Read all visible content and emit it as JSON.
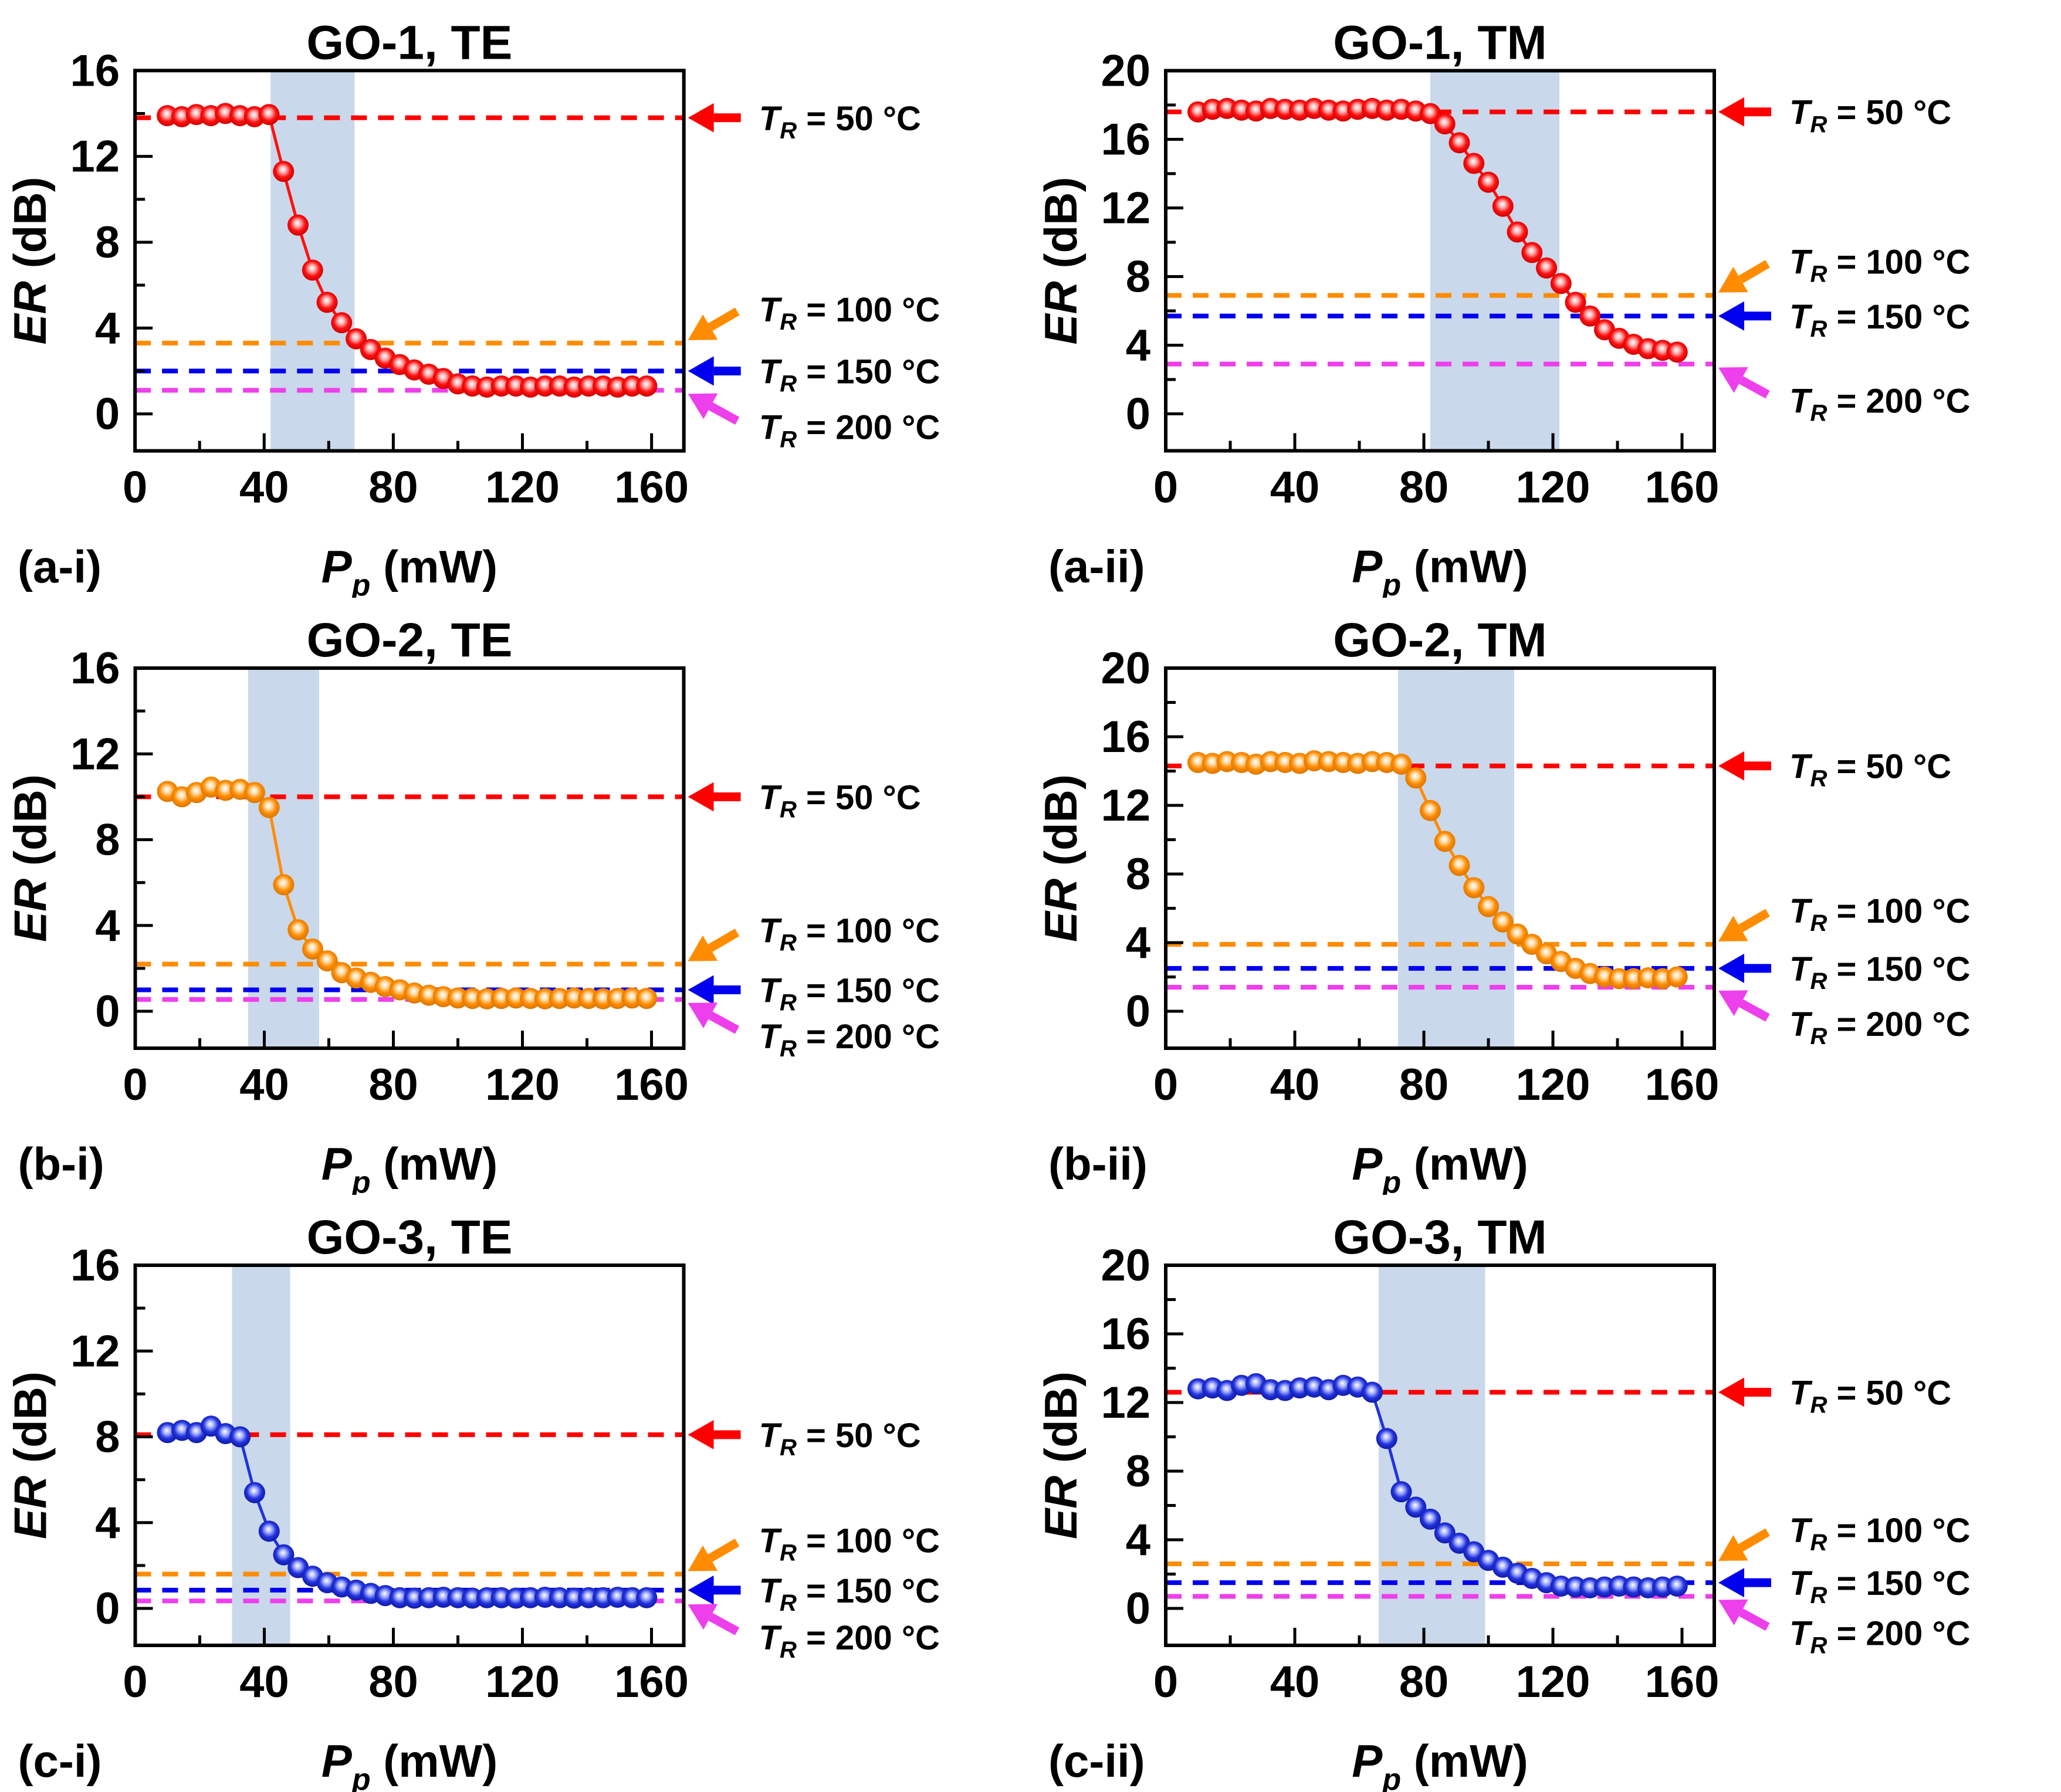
{
  "figure": {
    "x_axis": {
      "label": {
        "main": "P",
        "sub": "p",
        "rest": " (mW)"
      },
      "ticks_major": [
        0,
        40,
        80,
        120,
        160
      ],
      "ticks_minor": [
        20,
        60,
        100,
        140
      ],
      "max_mw": 170
    },
    "y_axis": {
      "label": {
        "main": "ER",
        "rest": " (dB)"
      }
    },
    "colors": {
      "background": "#FFFFFF",
      "axis": "#000000",
      "band": "#C9D8EA",
      "red": "#FF0000",
      "orange": "#FF8C00",
      "blue": "#0000EE",
      "magenta": "#EE3FEC",
      "marker_gradients": {
        "red": [
          "#FFFFFF",
          "#FFB0B0",
          "#FF1010",
          "#C80000"
        ],
        "orange": [
          "#FFFFFF",
          "#FFDCA8",
          "#FF8C00",
          "#D47300"
        ],
        "blue": [
          "#FFFFFF",
          "#A8B2FF",
          "#2233DC",
          "#0D18A0"
        ]
      }
    }
  },
  "chart_data": [
    {
      "id": "a-i",
      "tag": "(a-i)",
      "title": "GO-1, TE",
      "type": "scatter-line",
      "series": "red",
      "xlabel": "Pp (mW)",
      "ylabel": "ER (dB)",
      "xlim": [
        0,
        170
      ],
      "ymax": 16,
      "y_ticks_major": [
        0,
        4,
        8,
        12,
        16
      ],
      "y_ticks_minor": [
        2,
        6,
        10,
        14
      ],
      "band": [
        42,
        68
      ],
      "x": [
        10,
        14.5,
        19,
        23.5,
        28,
        32.5,
        37,
        41.5,
        46,
        50.5,
        55,
        59.5,
        64,
        68.5,
        73,
        77.5,
        82,
        86.5,
        91,
        95.5,
        100,
        104.5,
        109,
        113.5,
        118,
        122.5,
        127,
        131.5,
        136,
        140.5,
        145,
        149.5,
        154,
        158.5
      ],
      "y": [
        13.9,
        13.85,
        13.95,
        13.9,
        14.0,
        13.9,
        13.85,
        13.95,
        11.3,
        8.8,
        6.7,
        5.2,
        4.25,
        3.5,
        3.0,
        2.6,
        2.3,
        2.05,
        1.85,
        1.65,
        1.4,
        1.3,
        1.25,
        1.3,
        1.3,
        1.25,
        1.3,
        1.3,
        1.25,
        1.3,
        1.3,
        1.25,
        1.3,
        1.3
      ],
      "ref_lines": [
        {
          "id": "tr-50",
          "value": 13.8,
          "color": "red",
          "arrow": "left",
          "T": "T",
          "sub": "R",
          "rest": " = 50 °C"
        },
        {
          "id": "tr-100",
          "value": 3.3,
          "color": "orange",
          "arrow": "diag-down",
          "T": "T",
          "sub": "R",
          "rest": " = 100 °C"
        },
        {
          "id": "tr-150",
          "value": 2.0,
          "color": "blue",
          "arrow": "left",
          "T": "T",
          "sub": "R",
          "rest": " = 150 °C"
        },
        {
          "id": "tr-200",
          "value": 1.1,
          "color": "magenta",
          "arrow": "diag-up",
          "T": "T",
          "sub": "R",
          "rest": " = 200 °C"
        }
      ]
    },
    {
      "id": "a-ii",
      "tag": "(a-ii)",
      "title": "GO-1, TM",
      "type": "scatter-line",
      "series": "red",
      "xlabel": "Pp (mW)",
      "ylabel": "ER (dB)",
      "xlim": [
        0,
        170
      ],
      "ymax": 20,
      "y_ticks_major": [
        0,
        4,
        8,
        12,
        16,
        20
      ],
      "y_ticks_minor": [
        2,
        6,
        10,
        14,
        18
      ],
      "band": [
        82,
        122
      ],
      "x": [
        10,
        14.5,
        19,
        23.5,
        28,
        32.5,
        37,
        41.5,
        46,
        50.5,
        55,
        59.5,
        64,
        68.5,
        73,
        77.5,
        82,
        86.5,
        91,
        95.5,
        100,
        104.5,
        109,
        113.5,
        118,
        122.5,
        127,
        131.5,
        136,
        140.5,
        145,
        149.5,
        154,
        158.5
      ],
      "y": [
        17.6,
        17.75,
        17.8,
        17.7,
        17.65,
        17.8,
        17.75,
        17.7,
        17.8,
        17.7,
        17.65,
        17.75,
        17.8,
        17.7,
        17.75,
        17.65,
        17.5,
        16.9,
        15.8,
        14.6,
        13.5,
        12.1,
        10.6,
        9.4,
        8.5,
        7.6,
        6.5,
        5.7,
        4.9,
        4.4,
        4.05,
        3.8,
        3.7,
        3.6
      ],
      "ref_lines": [
        {
          "id": "tr-50",
          "value": 17.6,
          "color": "red",
          "arrow": "left",
          "T": "T",
          "sub": "R",
          "rest": " = 50 °C"
        },
        {
          "id": "tr-100",
          "value": 6.9,
          "color": "orange",
          "arrow": "diag-down",
          "T": "T",
          "sub": "R",
          "rest": " = 100 °C"
        },
        {
          "id": "tr-150",
          "value": 5.7,
          "color": "blue",
          "arrow": "left",
          "T": "T",
          "sub": "R",
          "rest": " = 150 °C"
        },
        {
          "id": "tr-200",
          "value": 2.9,
          "color": "magenta",
          "arrow": "diag-up",
          "T": "T",
          "sub": "R",
          "rest": " = 200 °C"
        }
      ]
    },
    {
      "id": "b-i",
      "tag": "(b-i)",
      "title": "GO-2, TE",
      "type": "scatter-line",
      "series": "orange",
      "xlabel": "Pp (mW)",
      "ylabel": "ER (dB)",
      "xlim": [
        0,
        170
      ],
      "ymax": 16,
      "y_ticks_major": [
        0,
        4,
        8,
        12,
        16
      ],
      "y_ticks_minor": [
        2,
        6,
        10,
        14
      ],
      "band": [
        35,
        57
      ],
      "x": [
        10,
        14.5,
        19,
        23.5,
        28,
        32.5,
        37,
        41.5,
        46,
        50.5,
        55,
        59.5,
        64,
        68.5,
        73,
        77.5,
        82,
        86.5,
        91,
        95.5,
        100,
        104.5,
        109,
        113.5,
        118,
        122.5,
        127,
        131.5,
        136,
        140.5,
        145,
        149.5,
        154,
        158.5
      ],
      "y": [
        10.25,
        10.0,
        10.2,
        10.45,
        10.3,
        10.35,
        10.2,
        9.5,
        5.9,
        3.8,
        2.9,
        2.35,
        1.8,
        1.55,
        1.35,
        1.15,
        1.0,
        0.85,
        0.75,
        0.68,
        0.62,
        0.6,
        0.58,
        0.6,
        0.62,
        0.6,
        0.58,
        0.6,
        0.62,
        0.6,
        0.58,
        0.6,
        0.62,
        0.6
      ],
      "ref_lines": [
        {
          "id": "tr-50",
          "value": 10.0,
          "color": "red",
          "arrow": "left",
          "T": "T",
          "sub": "R",
          "rest": " = 50 °C"
        },
        {
          "id": "tr-100",
          "value": 2.2,
          "color": "orange",
          "arrow": "diag-down",
          "T": "T",
          "sub": "R",
          "rest": " = 100 °C"
        },
        {
          "id": "tr-150",
          "value": 1.0,
          "color": "blue",
          "arrow": "left",
          "T": "T",
          "sub": "R",
          "rest": " = 150 °C"
        },
        {
          "id": "tr-200",
          "value": 0.55,
          "color": "magenta",
          "arrow": "diag-up",
          "T": "T",
          "sub": "R",
          "rest": " = 200 °C"
        }
      ]
    },
    {
      "id": "b-ii",
      "tag": "(b-ii)",
      "title": "GO-2, TM",
      "type": "scatter-line",
      "series": "orange",
      "xlabel": "Pp (mW)",
      "ylabel": "ER (dB)",
      "xlim": [
        0,
        170
      ],
      "ymax": 20,
      "y_ticks_major": [
        0,
        4,
        8,
        12,
        16,
        20
      ],
      "y_ticks_minor": [
        2,
        6,
        10,
        14,
        18
      ],
      "band": [
        72,
        108
      ],
      "x": [
        10,
        14.5,
        19,
        23.5,
        28,
        32.5,
        37,
        41.5,
        46,
        50.5,
        55,
        59.5,
        64,
        68.5,
        73,
        77.5,
        82,
        86.5,
        91,
        95.5,
        100,
        104.5,
        109,
        113.5,
        118,
        122.5,
        127,
        131.5,
        136,
        140.5,
        145,
        149.5,
        154,
        158.5
      ],
      "y": [
        14.5,
        14.45,
        14.55,
        14.5,
        14.4,
        14.55,
        14.5,
        14.45,
        14.6,
        14.55,
        14.5,
        14.45,
        14.55,
        14.5,
        14.4,
        13.6,
        11.7,
        9.9,
        8.5,
        7.2,
        6.1,
        5.2,
        4.5,
        3.9,
        3.35,
        2.9,
        2.5,
        2.2,
        2.0,
        1.9,
        1.9,
        1.95,
        1.9,
        2.0
      ],
      "ref_lines": [
        {
          "id": "tr-50",
          "value": 14.3,
          "color": "red",
          "arrow": "left",
          "T": "T",
          "sub": "R",
          "rest": " = 50 °C"
        },
        {
          "id": "tr-100",
          "value": 3.9,
          "color": "orange",
          "arrow": "diag-down",
          "T": "T",
          "sub": "R",
          "rest": " = 100 °C"
        },
        {
          "id": "tr-150",
          "value": 2.5,
          "color": "blue",
          "arrow": "left",
          "T": "T",
          "sub": "R",
          "rest": " = 150 °C"
        },
        {
          "id": "tr-200",
          "value": 1.4,
          "color": "magenta",
          "arrow": "diag-up",
          "T": "T",
          "sub": "R",
          "rest": " = 200 °C"
        }
      ]
    },
    {
      "id": "c-i",
      "tag": "(c-i)",
      "title": "GO-3, TE",
      "type": "scatter-line",
      "series": "blue",
      "xlabel": "Pp (mW)",
      "ylabel": "ER (dB)",
      "xlim": [
        0,
        170
      ],
      "ymax": 16,
      "y_ticks_major": [
        0,
        4,
        8,
        12,
        16
      ],
      "y_ticks_minor": [
        2,
        6,
        10,
        14
      ],
      "band": [
        30,
        48
      ],
      "x": [
        10,
        14.5,
        19,
        23.5,
        28,
        32.5,
        37,
        41.5,
        46,
        50.5,
        55,
        59.5,
        64,
        68.5,
        73,
        77.5,
        82,
        86.5,
        91,
        95.5,
        100,
        104.5,
        109,
        113.5,
        118,
        122.5,
        127,
        131.5,
        136,
        140.5,
        145,
        149.5,
        154,
        158.5
      ],
      "y": [
        8.2,
        8.3,
        8.2,
        8.5,
        8.15,
        8.0,
        5.4,
        3.6,
        2.5,
        1.9,
        1.5,
        1.2,
        1.0,
        0.85,
        0.7,
        0.6,
        0.5,
        0.48,
        0.5,
        0.52,
        0.5,
        0.48,
        0.5,
        0.5,
        0.48,
        0.5,
        0.52,
        0.5,
        0.48,
        0.5,
        0.5,
        0.52,
        0.5,
        0.5
      ],
      "ref_lines": [
        {
          "id": "tr-50",
          "value": 8.1,
          "color": "red",
          "arrow": "left",
          "T": "T",
          "sub": "R",
          "rest": " = 50 °C"
        },
        {
          "id": "tr-100",
          "value": 1.6,
          "color": "orange",
          "arrow": "diag-down",
          "T": "T",
          "sub": "R",
          "rest": " = 100 °C"
        },
        {
          "id": "tr-150",
          "value": 0.85,
          "color": "blue",
          "arrow": "left",
          "T": "T",
          "sub": "R",
          "rest": " = 150 °C"
        },
        {
          "id": "tr-200",
          "value": 0.35,
          "color": "magenta",
          "arrow": "diag-up",
          "T": "T",
          "sub": "R",
          "rest": " = 200 °C"
        }
      ]
    },
    {
      "id": "c-ii",
      "tag": "(c-ii)",
      "title": "GO-3, TM",
      "type": "scatter-line",
      "series": "blue",
      "xlabel": "Pp (mW)",
      "ylabel": "ER (dB)",
      "xlim": [
        0,
        170
      ],
      "ymax": 20,
      "y_ticks_major": [
        0,
        4,
        8,
        12,
        16,
        20
      ],
      "y_ticks_minor": [
        2,
        6,
        10,
        14,
        18
      ],
      "band": [
        66,
        99
      ],
      "x": [
        10,
        14.5,
        19,
        23.5,
        28,
        32.5,
        37,
        41.5,
        46,
        50.5,
        55,
        59.5,
        64,
        68.5,
        73,
        77.5,
        82,
        86.5,
        91,
        95.5,
        100,
        104.5,
        109,
        113.5,
        118,
        122.5,
        127,
        131.5,
        136,
        140.5,
        145,
        149.5,
        154,
        158.5
      ],
      "y": [
        12.8,
        12.85,
        12.7,
        13.0,
        13.1,
        12.75,
        12.7,
        12.85,
        12.9,
        12.75,
        13.0,
        12.9,
        12.6,
        9.9,
        6.8,
        5.9,
        5.2,
        4.4,
        3.8,
        3.3,
        2.8,
        2.4,
        2.05,
        1.75,
        1.5,
        1.3,
        1.25,
        1.2,
        1.25,
        1.3,
        1.25,
        1.2,
        1.25,
        1.3
      ],
      "ref_lines": [
        {
          "id": "tr-50",
          "value": 12.6,
          "color": "red",
          "arrow": "left",
          "T": "T",
          "sub": "R",
          "rest": " = 50 °C"
        },
        {
          "id": "tr-100",
          "value": 2.6,
          "color": "orange",
          "arrow": "diag-down",
          "T": "T",
          "sub": "R",
          "rest": " = 100 °C"
        },
        {
          "id": "tr-150",
          "value": 1.5,
          "color": "blue",
          "arrow": "left",
          "T": "T",
          "sub": "R",
          "rest": " = 150 °C"
        },
        {
          "id": "tr-200",
          "value": 0.7,
          "color": "magenta",
          "arrow": "diag-up",
          "T": "T",
          "sub": "R",
          "rest": " = 200 °C"
        }
      ]
    }
  ]
}
